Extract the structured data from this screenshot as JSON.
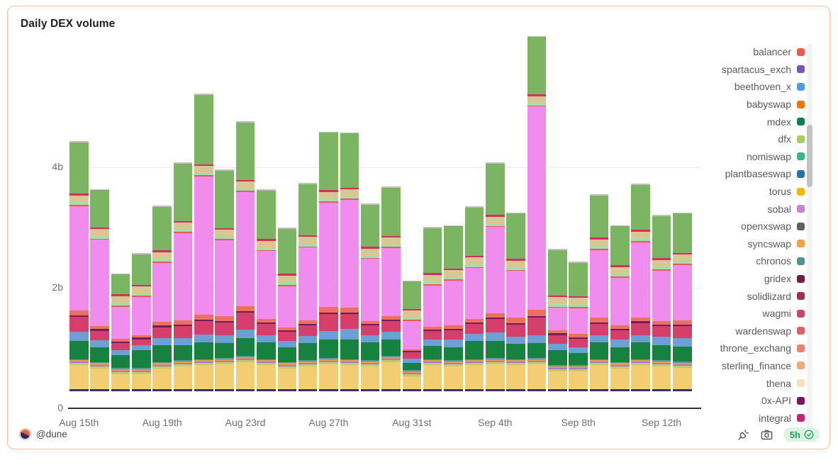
{
  "card": {
    "title": "Daily DEX volume",
    "accent_border": "#F8BE9E"
  },
  "chart_data": {
    "type": "bar",
    "stacked": true,
    "title": "Daily DEX volume",
    "unit": "b (billions)",
    "grid": "horizontal",
    "ylim": [
      0,
      6.2
    ],
    "y_ticks": [
      {
        "label": "0",
        "value": 0
      },
      {
        "label": "2b",
        "value": 2
      },
      {
        "label": "4b",
        "value": 4
      }
    ],
    "x": [
      "Aug 15",
      "Aug 16",
      "Aug 17",
      "Aug 18",
      "Aug 19",
      "Aug 20",
      "Aug 21",
      "Aug 22",
      "Aug 23",
      "Aug 24",
      "Aug 25",
      "Aug 26",
      "Aug 27",
      "Aug 28",
      "Aug 29",
      "Aug 30",
      "Aug 31",
      "Sep 1",
      "Sep 2",
      "Sep 3",
      "Sep 4",
      "Sep 5",
      "Sep 6",
      "Sep 7",
      "Sep 8",
      "Sep 9",
      "Sep 10",
      "Sep 11",
      "Sep 12",
      "Sep 13"
    ],
    "x_tick_labels": [
      "Aug 15th",
      "Aug 19th",
      "Aug 23rd",
      "Aug 27th",
      "Aug 31st",
      "Sep 4th",
      "Sep 8th",
      "Sep 12th"
    ],
    "x_tick_every": 4,
    "totals": [
      4.15,
      3.36,
      1.96,
      2.29,
      3.08,
      3.8,
      4.94,
      3.68,
      4.48,
      3.35,
      2.62,
      3.46,
      4.31,
      4.3,
      3.12,
      3.4,
      1.84,
      2.73,
      2.76,
      3.07,
      3.8,
      2.97,
      5.9,
      2.36,
      2.15,
      3.27,
      2.76,
      3.45,
      2.93,
      2.97
    ],
    "series": [
      {
        "name": "spartacus_exch",
        "color": "#3A3169",
        "value_all": 0.03
      },
      {
        "name": "torus",
        "color": "#F2CD71",
        "values": [
          0.4,
          0.35,
          0.25,
          0.25,
          0.35,
          0.38,
          0.4,
          0.42,
          0.45,
          0.4,
          0.35,
          0.38,
          0.42,
          0.4,
          0.38,
          0.45,
          0.22,
          0.4,
          0.38,
          0.4,
          0.42,
          0.4,
          0.42,
          0.3,
          0.3,
          0.4,
          0.35,
          0.4,
          0.38,
          0.36
        ]
      },
      {
        "name": "dfx",
        "color": "#BCCE6F",
        "value_all": 0.035
      },
      {
        "name": "sobal",
        "color": "#B476C5",
        "value_all": 0.025
      },
      {
        "name": "syncswap",
        "color": "#E89B4C",
        "value_all": 0.025
      },
      {
        "name": "chronos",
        "color": "#5B9A96",
        "value_all": 0.02
      },
      {
        "name": "mdex",
        "color": "#17813F",
        "values": [
          0.3,
          0.25,
          0.22,
          0.3,
          0.28,
          0.25,
          0.28,
          0.25,
          0.3,
          0.28,
          0.25,
          0.28,
          0.3,
          0.32,
          0.3,
          0.28,
          0.12,
          0.22,
          0.22,
          0.3,
          0.28,
          0.25,
          0.25,
          0.25,
          0.2,
          0.28,
          0.25,
          0.28,
          0.25,
          0.25
        ]
      },
      {
        "name": "beethoven_x",
        "color": "#6D9FD4",
        "values": [
          0.15,
          0.11,
          0.08,
          0.08,
          0.12,
          0.12,
          0.13,
          0.12,
          0.14,
          0.12,
          0.1,
          0.12,
          0.15,
          0.18,
          0.12,
          0.12,
          0.07,
          0.1,
          0.12,
          0.12,
          0.14,
          0.12,
          0.12,
          0.1,
          0.1,
          0.12,
          0.12,
          0.12,
          0.14,
          0.14
        ]
      },
      {
        "name": "wagmi",
        "color": "#D63E6C",
        "values": [
          0.25,
          0.16,
          0.12,
          0.1,
          0.18,
          0.2,
          0.22,
          0.22,
          0.28,
          0.18,
          0.15,
          0.18,
          0.28,
          0.25,
          0.16,
          0.18,
          0.1,
          0.14,
          0.16,
          0.16,
          0.22,
          0.2,
          0.3,
          0.15,
          0.14,
          0.18,
          0.16,
          0.2,
          0.18,
          0.2
        ]
      },
      {
        "name": "0x-API",
        "color": "#6B2062",
        "value_all": 0.025
      },
      {
        "name": "wardenswap",
        "color": "#EE6F5B",
        "values": [
          0.08,
          0.05,
          0.04,
          0.04,
          0.06,
          0.07,
          0.08,
          0.08,
          0.08,
          0.06,
          0.05,
          0.06,
          0.09,
          0.08,
          0.05,
          0.06,
          0.03,
          0.05,
          0.05,
          0.06,
          0.08,
          0.09,
          0.1,
          0.05,
          0.05,
          0.08,
          0.05,
          0.06,
          0.06,
          0.07
        ]
      },
      {
        "name": "pink (unlabeled)",
        "color": "#F18CEF",
        "values": [
          1.735,
          1.435,
          0.535,
          0.635,
          0.985,
          1.445,
          2.295,
          1.255,
          1.895,
          1.125,
          0.685,
          1.205,
          1.735,
          1.785,
          1.025,
          1.125,
          0.465,
          0.685,
          0.745,
          0.845,
          1.425,
          0.775,
          3.375,
          0.375,
          0.425,
          1.125,
          0.795,
          1.255,
          0.835,
          0.915
        ]
      },
      {
        "name": "balancer",
        "color": "#ED5A4F",
        "value_all": 0.02
      },
      {
        "name": "nomiswap",
        "color": "#A3DEAD",
        "value_all": 0.045
      },
      {
        "name": "thena",
        "color": "#D9C691",
        "value_all": 0.11
      },
      {
        "name": "solidlizard",
        "color": "#D23063",
        "value_all": 0.03
      },
      {
        "name": "green (unlabeled)",
        "color": "#7CB561",
        "values": [
          0.85,
          0.62,
          0.33,
          0.5,
          0.72,
          0.95,
          1.15,
          0.95,
          0.95,
          0.8,
          0.75,
          0.85,
          0.95,
          0.9,
          0.7,
          0.8,
          0.45,
          0.75,
          0.7,
          0.8,
          0.85,
          0.75,
          0.95,
          0.75,
          0.55,
          0.7,
          0.65,
          0.75,
          0.7,
          0.65
        ]
      },
      {
        "name": "cap (unlabeled)",
        "color": "#C8BCCB",
        "value_all": 0.02
      }
    ]
  },
  "legend": {
    "scrollable": true,
    "items": [
      {
        "label": "balancer",
        "color": "#EC5A50"
      },
      {
        "label": "spartacus_exch",
        "color": "#7B52B5"
      },
      {
        "label": "beethoven_x",
        "color": "#4D9CE6"
      },
      {
        "label": "babyswap",
        "color": "#EC7412"
      },
      {
        "label": "mdex",
        "color": "#127C5E"
      },
      {
        "label": "dfx",
        "color": "#A4CF62"
      },
      {
        "label": "nomiswap",
        "color": "#39B58F"
      },
      {
        "label": "plantbaseswap",
        "color": "#2F6FA5"
      },
      {
        "label": "torus",
        "color": "#F2B705"
      },
      {
        "label": "sobal",
        "color": "#C584CF"
      },
      {
        "label": "openxswap",
        "color": "#606060"
      },
      {
        "label": "syncswap",
        "color": "#F2A245"
      },
      {
        "label": "chronos",
        "color": "#4F9392"
      },
      {
        "label": "gridex",
        "color": "#6B1E44"
      },
      {
        "label": "solidlizard",
        "color": "#9E3052"
      },
      {
        "label": "wagmi",
        "color": "#C74868"
      },
      {
        "label": "wardenswap",
        "color": "#DB6168"
      },
      {
        "label": "throne_exchang",
        "color": "#EC8171"
      },
      {
        "label": "sterling_finance",
        "color": "#ECA87E"
      },
      {
        "label": "thena",
        "color": "#F2E3BA"
      },
      {
        "label": "0x-API",
        "color": "#781760"
      },
      {
        "label": "integral",
        "color": "#C22573"
      }
    ]
  },
  "footer": {
    "watermark": "@dune",
    "refresh_badge": "5h",
    "icon_names": [
      "plug-icon",
      "camera-icon",
      "verified-check-icon"
    ]
  }
}
